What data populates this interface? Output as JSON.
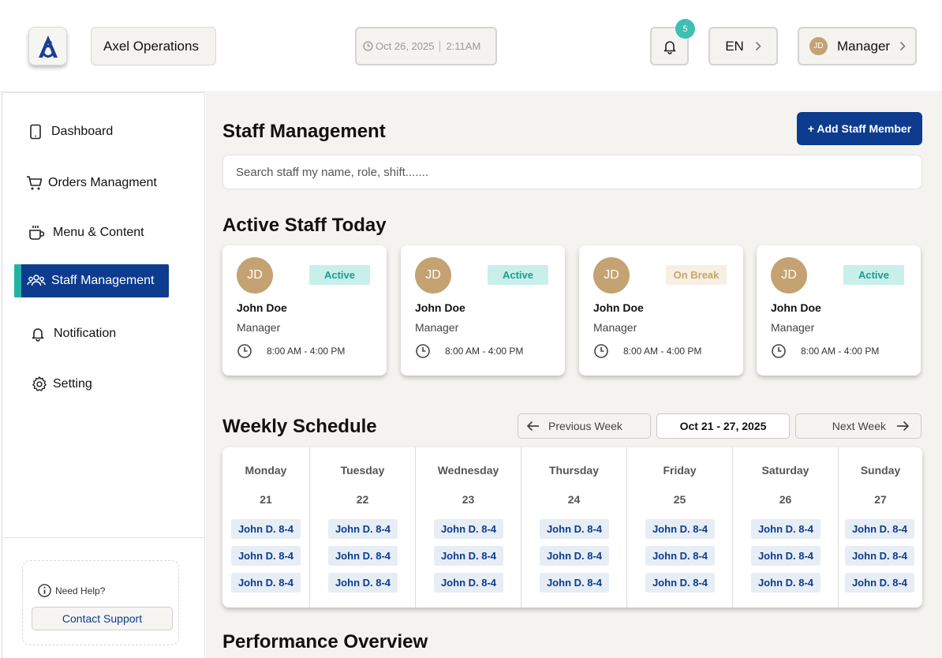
{
  "header": {
    "org_name": "Axel Operations",
    "date": "Oct 26, 2025",
    "time": "2:11AM",
    "notification_count": "5",
    "language": "EN",
    "user_initials": "JD",
    "user_role": "Manager"
  },
  "sidebar": {
    "items": [
      {
        "label": "Dashboard",
        "icon": "tablet-icon"
      },
      {
        "label": "Orders Managment",
        "icon": "cart-icon"
      },
      {
        "label": "Menu & Content",
        "icon": "coffee-cup-icon"
      },
      {
        "label": "Staff Management",
        "icon": "users-icon"
      },
      {
        "label": "Notification",
        "icon": "bell-icon"
      },
      {
        "label": "Setting",
        "icon": "gear-icon"
      }
    ],
    "help_label": "Need Help?",
    "contact_label": "Contact Support"
  },
  "main": {
    "title": "Staff Management",
    "add_button": "+ Add Staff Member",
    "search_placeholder": "Search staff my name, role, shift.......",
    "active_title": "Active Staff Today",
    "staff": [
      {
        "initials": "JD",
        "status": "Active",
        "name": "John Doe",
        "role": "Manager",
        "shift": "8:00 AM - 4:00 PM"
      },
      {
        "initials": "JD",
        "status": "Active",
        "name": "John Doe",
        "role": "Manager",
        "shift": "8:00 AM - 4:00 PM"
      },
      {
        "initials": "JD",
        "status": "On Break",
        "name": "John Doe",
        "role": "Manager",
        "shift": "8:00 AM - 4:00 PM"
      },
      {
        "initials": "JD",
        "status": "Active",
        "name": "John Doe",
        "role": "Manager",
        "shift": "8:00 AM - 4:00 PM"
      }
    ],
    "weekly_title": "Weekly Schedule",
    "prev_week": "Previous Week",
    "week_range": "Oct 21 - 27, 2025",
    "next_week": "Next Week",
    "days": [
      {
        "name": "Monday",
        "num": "21",
        "shifts": [
          "John D. 8-4",
          "John D. 8-4",
          "John D. 8-4"
        ]
      },
      {
        "name": "Tuesday",
        "num": "22",
        "shifts": [
          "John D. 8-4",
          "John D. 8-4",
          "John D. 8-4"
        ]
      },
      {
        "name": "Wednesday",
        "num": "23",
        "shifts": [
          "John D. 8-4",
          "John D. 8-4",
          "John D. 8-4"
        ]
      },
      {
        "name": "Thursday",
        "num": "24",
        "shifts": [
          "John D. 8-4",
          "John D. 8-4",
          "John D. 8-4"
        ]
      },
      {
        "name": "Friday",
        "num": "25",
        "shifts": [
          "John D. 8-4",
          "John D. 8-4",
          "John D. 8-4"
        ]
      },
      {
        "name": "Saturday",
        "num": "26",
        "shifts": [
          "John D. 8-4",
          "John D. 8-4",
          "John D. 8-4"
        ]
      },
      {
        "name": "Sunday",
        "num": "27",
        "shifts": [
          "John D. 8-4",
          "John D. 8-4",
          "John D. 8-4"
        ]
      }
    ],
    "performance_title": "Performance Overview"
  },
  "colors": {
    "primary": "#0d3b8e",
    "accent": "#22b3a4",
    "background": "#f4f3ef",
    "avatar": "#c4a271",
    "active_bg": "#c9efea",
    "break_bg": "#f7efe3"
  }
}
